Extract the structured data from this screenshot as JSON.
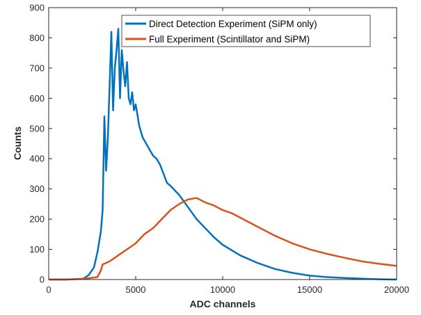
{
  "chart_data": {
    "type": "line",
    "xlabel": "ADC channels",
    "ylabel": "Counts",
    "xlim": [
      0,
      20000
    ],
    "ylim": [
      0,
      900
    ],
    "xticks": [
      0,
      5000,
      10000,
      15000,
      20000
    ],
    "xtick_labels": [
      "0",
      "5000",
      "10000",
      "15000",
      "20000"
    ],
    "yticks": [
      0,
      100,
      200,
      300,
      400,
      500,
      600,
      700,
      800,
      900
    ],
    "ytick_labels": [
      "0",
      "100",
      "200",
      "300",
      "400",
      "500",
      "600",
      "700",
      "800",
      "900"
    ],
    "grid": false,
    "legend_position": "top-right",
    "series": [
      {
        "name": "Direct Detection Experiment (SiPM only)",
        "color": "#0072BD",
        "x": [
          0,
          1000,
          2000,
          2300,
          2600,
          2800,
          3000,
          3100,
          3200,
          3300,
          3400,
          3500,
          3600,
          3700,
          3800,
          3900,
          4000,
          4100,
          4200,
          4300,
          4400,
          4500,
          4600,
          4700,
          4800,
          4900,
          5000,
          5200,
          5400,
          5600,
          5800,
          6000,
          6200,
          6400,
          6600,
          6800,
          7000,
          7500,
          8000,
          8500,
          9000,
          9500,
          10000,
          11000,
          12000,
          13000,
          14000,
          15000,
          16000,
          17000,
          18000,
          19000,
          20000
        ],
        "y": [
          0,
          0,
          3,
          15,
          40,
          90,
          160,
          230,
          540,
          360,
          470,
          640,
          820,
          560,
          700,
          760,
          830,
          600,
          760,
          690,
          640,
          720,
          600,
          580,
          620,
          560,
          580,
          510,
          470,
          450,
          430,
          410,
          400,
          380,
          350,
          320,
          310,
          280,
          240,
          200,
          170,
          140,
          115,
          80,
          55,
          35,
          22,
          13,
          8,
          5,
          3,
          1,
          0
        ]
      },
      {
        "name": "Full Experiment (Scintillator and SiPM)",
        "color": "#D95319",
        "x": [
          0,
          1000,
          2000,
          2800,
          3000,
          3100,
          3500,
          4000,
          4500,
          5000,
          5500,
          6000,
          6500,
          7000,
          7500,
          8000,
          8500,
          9000,
          9500,
          10000,
          10500,
          11000,
          12000,
          13000,
          14000,
          15000,
          16000,
          17000,
          18000,
          19000,
          20000
        ],
        "y": [
          0,
          0,
          2,
          8,
          30,
          50,
          60,
          80,
          100,
          120,
          150,
          170,
          200,
          230,
          250,
          265,
          270,
          255,
          245,
          230,
          220,
          205,
          175,
          145,
          120,
          100,
          85,
          72,
          60,
          52,
          45
        ]
      }
    ]
  }
}
